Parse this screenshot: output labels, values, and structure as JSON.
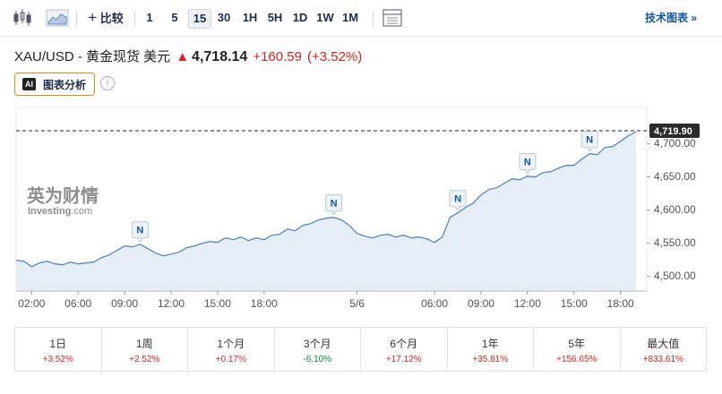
{
  "toolbar": {
    "compare": "比较",
    "intervals": [
      "1",
      "5",
      "15",
      "30",
      "1H",
      "5H",
      "1D",
      "1W",
      "1M"
    ],
    "active_index": 2,
    "technical": "技术图表 »"
  },
  "header": {
    "symbol": "XAU/USD - 黄金现货 美元",
    "price": "4,718.14",
    "change": "+160.59",
    "change_pct": "(+3.52%)",
    "ai_badge": "AI",
    "ai_button": "图表分析"
  },
  "chart_data": {
    "type": "area",
    "color": "#5b86bd",
    "fill": "#e6eef8",
    "categories": [
      null,
      null,
      "02:00",
      null,
      null,
      null,
      null,
      null,
      "06:00",
      null,
      null,
      null,
      null,
      null,
      "09:00",
      null,
      null,
      null,
      null,
      null,
      "12:00",
      null,
      null,
      null,
      null,
      null,
      "15:00",
      null,
      null,
      null,
      null,
      null,
      "18:00",
      null,
      null,
      null,
      null,
      null,
      null,
      null,
      null,
      null,
      null,
      null,
      "5/6",
      null,
      null,
      null,
      null,
      null,
      null,
      null,
      null,
      null,
      "06:00",
      null,
      null,
      null,
      null,
      null,
      "09:00",
      null,
      null,
      null,
      null,
      null,
      "12:00",
      null,
      null,
      null,
      null,
      null,
      "15:00",
      null,
      null,
      null,
      null,
      null,
      "18:00",
      null,
      null
    ],
    "values": [
      4524.3,
      4523,
      4514.9,
      4520.3,
      4523,
      4518.9,
      4517.6,
      4521.6,
      4518.9,
      4520.3,
      4521.6,
      4528.4,
      4532.4,
      4539.2,
      4545.9,
      4544.6,
      4548.6,
      4541.9,
      4535.1,
      4531.1,
      4533.8,
      4536.5,
      4543.2,
      4545.9,
      4550,
      4552.7,
      4551.4,
      4558.1,
      4555.4,
      4559.5,
      4554.1,
      4558.1,
      4555.4,
      4562.2,
      4563.5,
      4571.6,
      4568.9,
      4577,
      4579.7,
      4585.1,
      4587.8,
      4589.2,
      4585.1,
      4577,
      4564.9,
      4560.8,
      4558.1,
      4562.2,
      4563.5,
      4559.5,
      4562.2,
      4558.1,
      4559.5,
      4556.8,
      4551.4,
      4559.5,
      4589.2,
      4595.9,
      4604.1,
      4610.8,
      4623,
      4631.1,
      4633.8,
      4640.5,
      4647.3,
      4645.9,
      4651.4,
      4650,
      4656.8,
      4658.1,
      4663.5,
      4667.6,
      4667.6,
      4677,
      4685.1,
      4683.8,
      4694.6,
      4696,
      4704.1,
      4712.2,
      4718.14
    ],
    "ylim": [
      4478,
      4755
    ],
    "yticks": [
      {
        "value": 4500,
        "label": "4,500.00"
      },
      {
        "value": 4550,
        "label": "4,550.00"
      },
      {
        "value": 4600,
        "label": "4,600.00"
      },
      {
        "value": 4650,
        "label": "4,650.00"
      },
      {
        "value": 4700,
        "label": "4,700.00"
      }
    ],
    "last_price": {
      "value": 4719.9,
      "label": "4,719.90"
    },
    "events": [
      {
        "at": 16,
        "label": "N"
      },
      {
        "at": 41,
        "label": "N"
      },
      {
        "at": 57,
        "label": "N"
      },
      {
        "at": 66,
        "label": "N"
      },
      {
        "at": 74,
        "label": "N"
      }
    ],
    "watermark": {
      "cn": "英为财情",
      "en": "Investing",
      "en_suffix": ".com"
    }
  },
  "periods": [
    {
      "label": "1日",
      "change": "+3.52%",
      "color": "#d4231f"
    },
    {
      "label": "1周",
      "change": "+2.52%",
      "color": "#d4231f"
    },
    {
      "label": "1个月",
      "change": "+0.17%",
      "color": "#d4231f"
    },
    {
      "label": "3个月",
      "change": "-6.10%",
      "color": "#0d8a3a"
    },
    {
      "label": "6个月",
      "change": "+17.12%",
      "color": "#d4231f"
    },
    {
      "label": "1年",
      "change": "+35.81%",
      "color": "#d4231f"
    },
    {
      "label": "5年",
      "change": "+156.65%",
      "color": "#d4231f"
    },
    {
      "label": "最大值",
      "change": "+833.61%",
      "color": "#d4231f"
    }
  ]
}
